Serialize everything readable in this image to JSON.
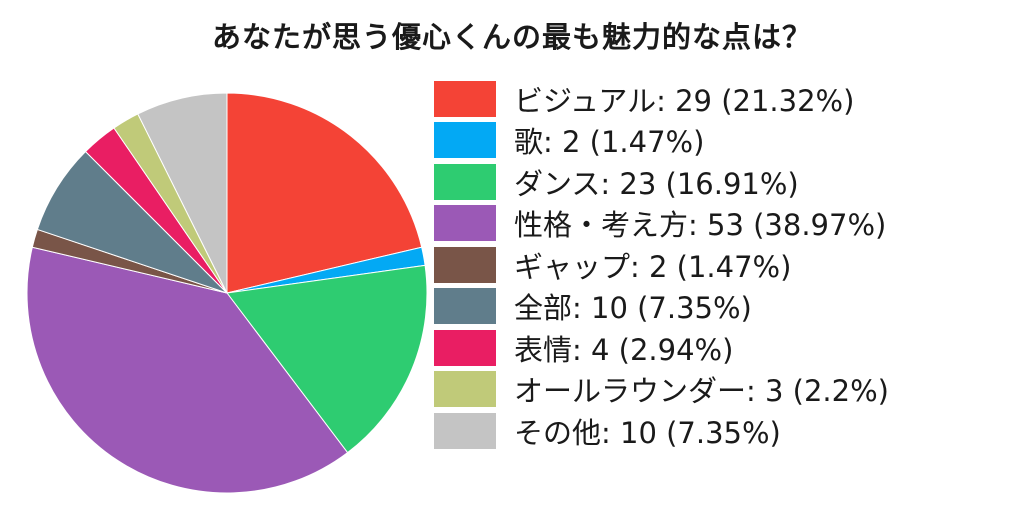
{
  "chart_data": {
    "type": "pie",
    "title": "あなたが思う優心くんの最も魅力的な点は？",
    "slices": [
      {
        "label": "ビジュアル",
        "value": 29,
        "percent": "21.32%",
        "color": "#f44336"
      },
      {
        "label": "歌",
        "value": 2,
        "percent": "1.47%",
        "color": "#03a9f4"
      },
      {
        "label": "ダンス",
        "value": 23,
        "percent": "16.91%",
        "color": "#2ecc71"
      },
      {
        "label": "性格・考え方",
        "value": 53,
        "percent": "38.97%",
        "color": "#9b59b6"
      },
      {
        "label": "ギャップ",
        "value": 2,
        "percent": "1.47%",
        "color": "#795548"
      },
      {
        "label": "全部",
        "value": 10,
        "percent": "7.35%",
        "color": "#607d8b"
      },
      {
        "label": "表情",
        "value": 4,
        "percent": "2.94%",
        "color": "#e91e63"
      },
      {
        "label": "オールラウンダー",
        "value": 3,
        "percent": "2.2%",
        "color": "#c0ca79"
      },
      {
        "label": "その他",
        "value": 10,
        "percent": "7.35%",
        "color": "#c4c4c4"
      }
    ],
    "legend_position": "right"
  }
}
